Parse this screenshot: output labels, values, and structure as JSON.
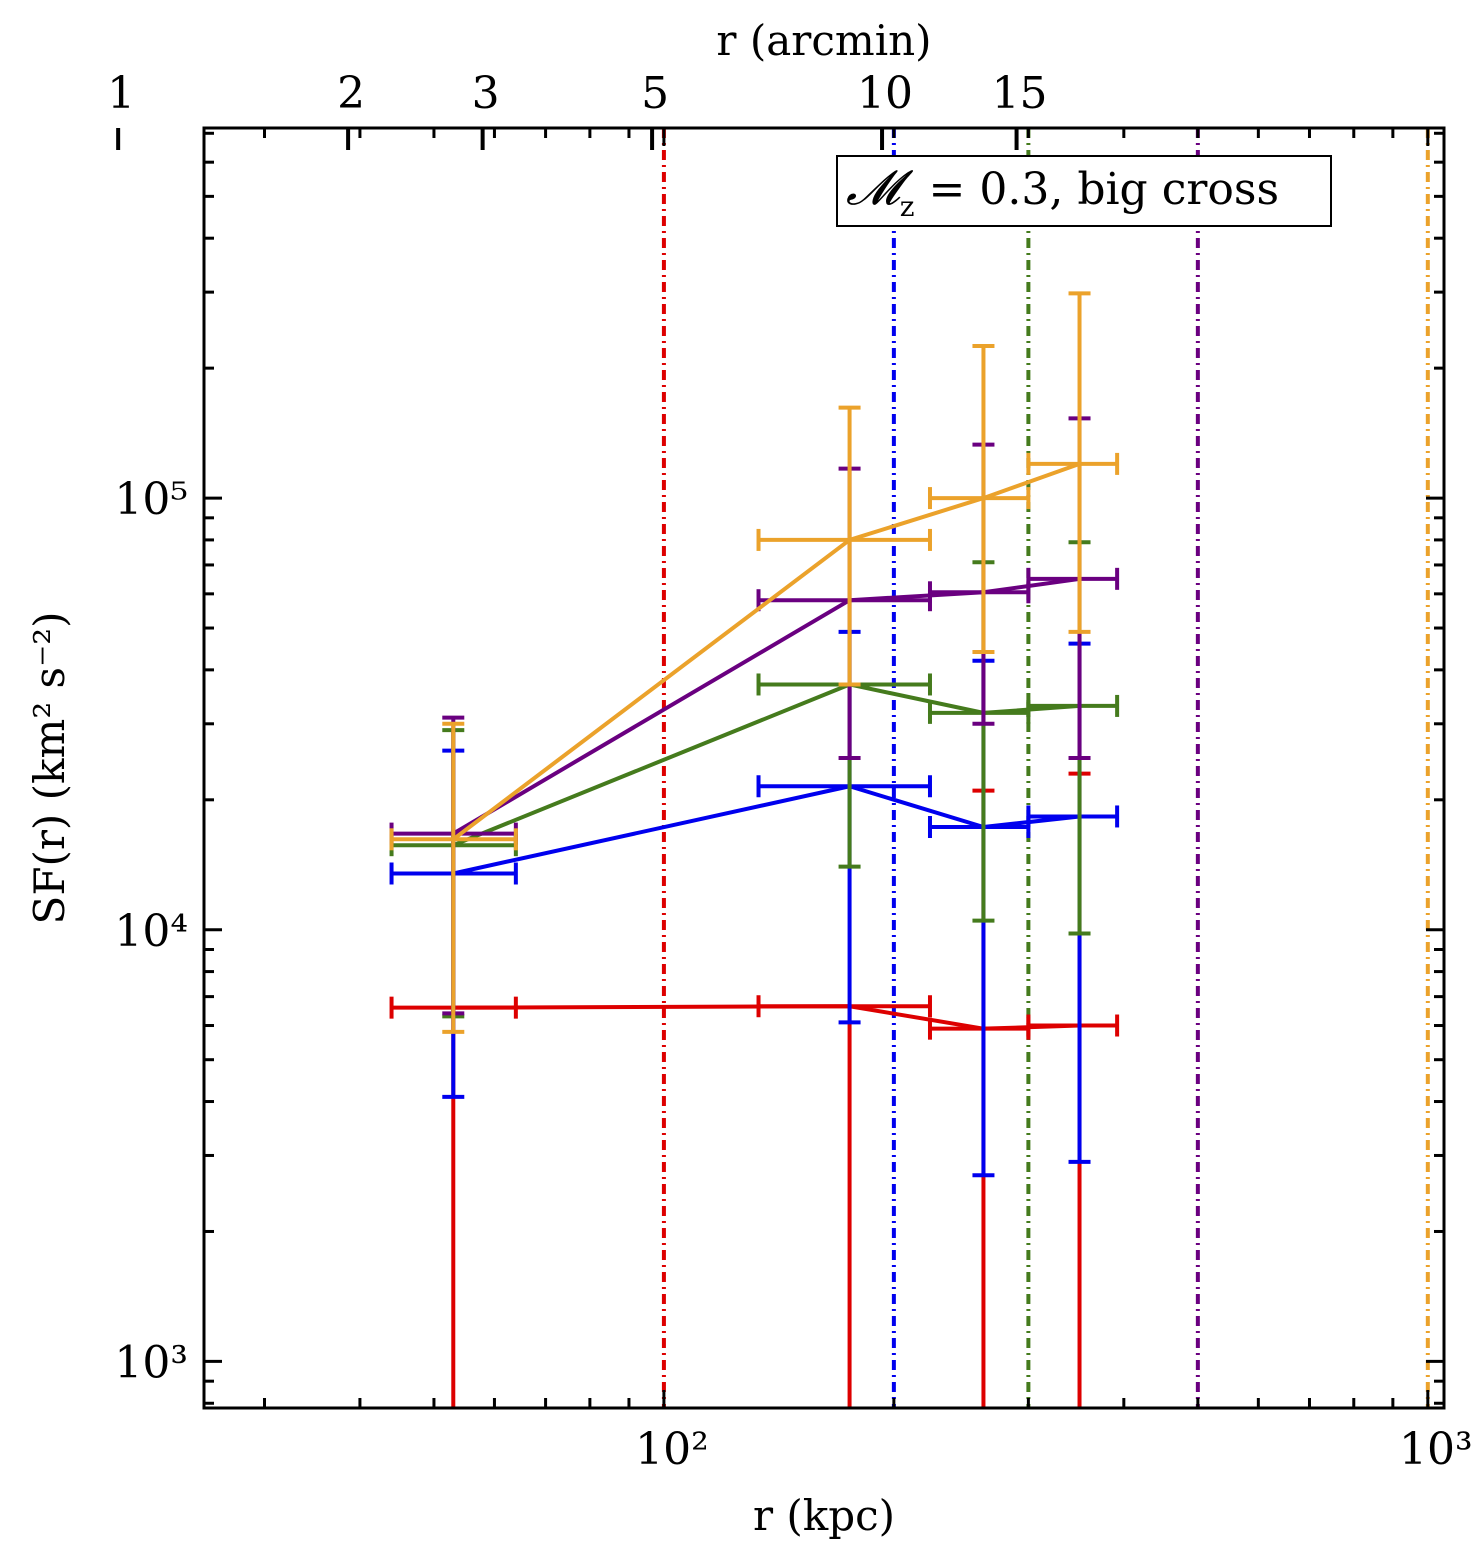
{
  "chart_data": {
    "type": "line",
    "xlabel": "r (kpc)",
    "ylabel": "SF(r) (km² s⁻²)",
    "x2label": "r (arcmin)",
    "x_scale": "log",
    "y_scale": "log",
    "xlim": [
      25,
      1050
    ],
    "ylim": [
      780,
      720000
    ],
    "x_ticks": [
      100,
      1000
    ],
    "x_tick_labels": [
      "10²",
      "10³"
    ],
    "y_ticks": [
      1000,
      10000,
      100000
    ],
    "y_tick_labels": [
      "10³",
      "10⁴",
      "10⁵"
    ],
    "x2_ticks": [
      1,
      2,
      3,
      5,
      10,
      15
    ],
    "x2_tick_labels": [
      "1",
      "2",
      "3",
      "5",
      "10",
      "15"
    ],
    "kpc_per_arcmin": 19.3,
    "annotation": {
      "math": "𝓜",
      "sub": "z",
      "text": " = 0.3, big cross"
    },
    "series": [
      {
        "color": "#dd0000",
        "points": [
          {
            "x": 53,
            "y": 6600,
            "xerr": [
              44,
              64
            ],
            "yerr": [
              780,
              0
            ]
          },
          {
            "x": 175,
            "y": 6650,
            "xerr": [
              133,
              223
            ],
            "yerr": [
              780,
              0
            ]
          },
          {
            "x": 262,
            "y": 5900,
            "xerr": [
              223,
              300
            ],
            "yerr": [
              780,
              21000
            ]
          },
          {
            "x": 350,
            "y": 6000,
            "xerr": [
              300,
              392
            ],
            "yerr": [
              780,
              23000
            ]
          }
        ],
        "vline": 100
      },
      {
        "color": "#0000ee",
        "points": [
          {
            "x": 53,
            "y": 13500,
            "xerr": [
              44,
              64
            ],
            "yerr": [
              4100,
              26000
            ]
          },
          {
            "x": 175,
            "y": 21500,
            "xerr": [
              133,
              223
            ],
            "yerr": [
              6100,
              49000
            ]
          },
          {
            "x": 262,
            "y": 17300,
            "xerr": [
              223,
              300
            ],
            "yerr": [
              2700,
              42000
            ]
          },
          {
            "x": 350,
            "y": 18300,
            "xerr": [
              300,
              392
            ],
            "yerr": [
              2900,
              46000
            ]
          }
        ],
        "vline": 200
      },
      {
        "color": "#457b1d",
        "points": [
          {
            "x": 53,
            "y": 15700,
            "xerr": [
              44,
              64
            ],
            "yerr": [
              6300,
              29000
            ]
          },
          {
            "x": 175,
            "y": 37000,
            "xerr": [
              133,
              223
            ],
            "yerr": [
              14000,
              37000
            ]
          },
          {
            "x": 262,
            "y": 31800,
            "xerr": [
              223,
              300
            ],
            "yerr": [
              10500,
              71000
            ]
          },
          {
            "x": 350,
            "y": 33000,
            "xerr": [
              300,
              392
            ],
            "yerr": [
              9800,
              79000
            ]
          }
        ],
        "vline": 300
      },
      {
        "color": "#6a0080",
        "points": [
          {
            "x": 53,
            "y": 16700,
            "xerr": [
              44,
              64
            ],
            "yerr": [
              6400,
              31000
            ]
          },
          {
            "x": 175,
            "y": 58000,
            "xerr": [
              133,
              223
            ],
            "yerr": [
              25000,
              117000
            ]
          },
          {
            "x": 262,
            "y": 60500,
            "xerr": [
              223,
              300
            ],
            "yerr": [
              30000,
              133000
            ]
          },
          {
            "x": 350,
            "y": 65000,
            "xerr": [
              300,
              392
            ],
            "yerr": [
              25000,
              153000
            ]
          }
        ],
        "vline": 500
      },
      {
        "color": "#eba22b",
        "points": [
          {
            "x": 53,
            "y": 16200,
            "xerr": [
              44,
              64
            ],
            "yerr": [
              5800,
              30000
            ]
          },
          {
            "x": 175,
            "y": 80000,
            "xerr": [
              133,
              223
            ],
            "yerr": [
              37000,
              162000
            ]
          },
          {
            "x": 262,
            "y": 100000,
            "xerr": [
              223,
              300
            ],
            "yerr": [
              44000,
              225000
            ]
          },
          {
            "x": 350,
            "y": 120000,
            "xerr": [
              300,
              392
            ],
            "yerr": [
              49000,
              298000
            ]
          }
        ],
        "vline": 1000
      }
    ]
  }
}
